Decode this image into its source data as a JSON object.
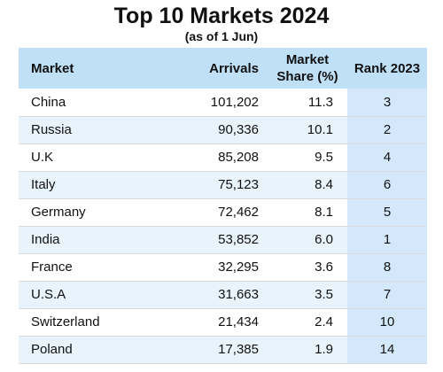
{
  "title": "Top 10 Markets 2024",
  "subtitle": "(as of 1 Jun)",
  "headers": {
    "market": "Market",
    "arrivals": "Arrivals",
    "share_line1": "Market",
    "share_line2": "Share (%)",
    "rank": "Rank 2023"
  },
  "rows": [
    {
      "market": "China",
      "arrivals": "101,202",
      "share": "11.3",
      "rank": "3"
    },
    {
      "market": "Russia",
      "arrivals": "90,336",
      "share": "10.1",
      "rank": "2"
    },
    {
      "market": "U.K",
      "arrivals": "85,208",
      "share": "9.5",
      "rank": "4"
    },
    {
      "market": "Italy",
      "arrivals": "75,123",
      "share": "8.4",
      "rank": "6"
    },
    {
      "market": "Germany",
      "arrivals": "72,462",
      "share": "8.1",
      "rank": "5"
    },
    {
      "market": "India",
      "arrivals": "53,852",
      "share": "6.0",
      "rank": "1"
    },
    {
      "market": "France",
      "arrivals": "32,295",
      "share": "3.6",
      "rank": "8"
    },
    {
      "market": "U.S.A",
      "arrivals": "31,663",
      "share": "3.5",
      "rank": "7"
    },
    {
      "market": "Switzerland",
      "arrivals": "21,434",
      "share": "2.4",
      "rank": "10"
    },
    {
      "market": "Poland",
      "arrivals": "17,385",
      "share": "1.9",
      "rank": "14"
    }
  ],
  "colors": {
    "header_bg": "#bfe0f7",
    "stripe_bg": "#e8f3fc",
    "rank_col_bg": "#d3e9fb"
  }
}
